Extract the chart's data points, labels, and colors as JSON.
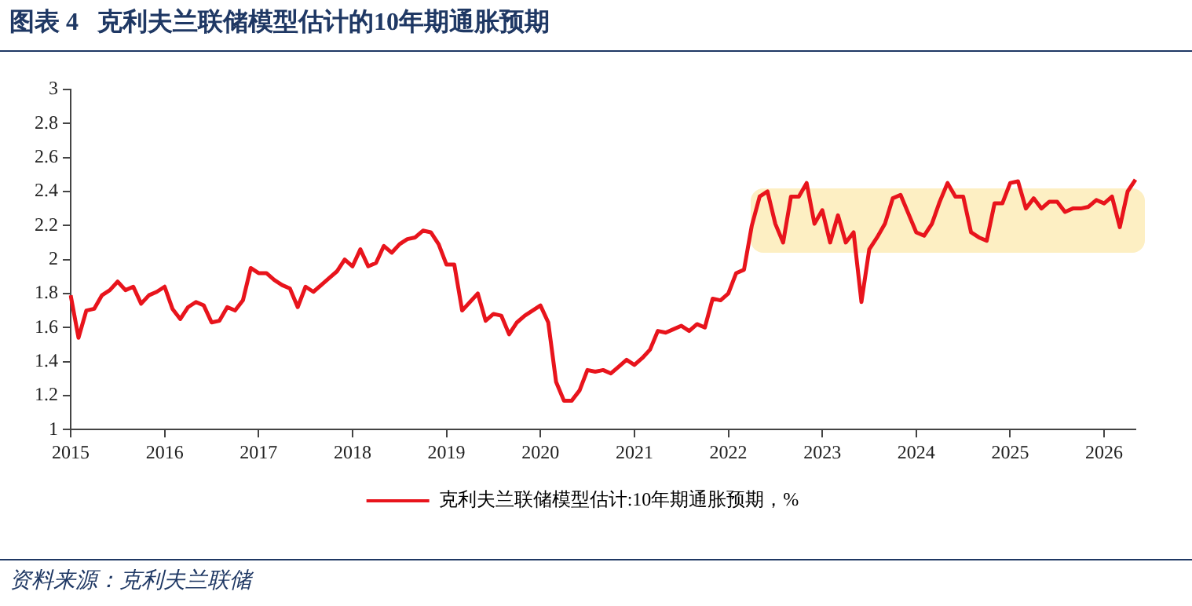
{
  "chart_data": {
    "type": "line",
    "title": "图表 4   克利夫兰联储模型估计的10年期通胀预期",
    "annotations": [
      "资料来源：克利夫兰联储"
    ],
    "categories": [
      "2015",
      null,
      null,
      null,
      null,
      null,
      null,
      null,
      null,
      null,
      null,
      null,
      "2016",
      null,
      null,
      null,
      null,
      null,
      null,
      null,
      null,
      null,
      null,
      null,
      "2017",
      null,
      null,
      null,
      null,
      null,
      null,
      null,
      null,
      null,
      null,
      null,
      "2018",
      null,
      null,
      null,
      null,
      null,
      null,
      null,
      null,
      null,
      null,
      null,
      "2019",
      null,
      null,
      null,
      null,
      null,
      null,
      null,
      null,
      null,
      null,
      null,
      "2020",
      null,
      null,
      null,
      null,
      null,
      null,
      null,
      null,
      null,
      null,
      null,
      "2021",
      null,
      null,
      null,
      null,
      null,
      null,
      null,
      null,
      null,
      null,
      null,
      "2022",
      null,
      null,
      null,
      null,
      null,
      null,
      null,
      null,
      null,
      null,
      null,
      "2023",
      null,
      null,
      null,
      null,
      null,
      null,
      null,
      null,
      null,
      null,
      null,
      "2024",
      null,
      null,
      null,
      null,
      null,
      null,
      null,
      null,
      null,
      null,
      null,
      "2025",
      null,
      null,
      null,
      null,
      null,
      null,
      null,
      null,
      null,
      null,
      null,
      "2026",
      null,
      null,
      null,
      null
    ],
    "series": [
      {
        "name": "克利夫兰联储模型估计:10年期通胀预期，%",
        "color": "#e8141c",
        "values": [
          1.79,
          1.54,
          1.7,
          1.71,
          1.79,
          1.82,
          1.87,
          1.82,
          1.84,
          1.74,
          1.79,
          1.81,
          1.84,
          1.71,
          1.65,
          1.72,
          1.75,
          1.73,
          1.63,
          1.64,
          1.72,
          1.7,
          1.76,
          1.95,
          1.92,
          1.92,
          1.88,
          1.85,
          1.83,
          1.72,
          1.84,
          1.81,
          1.85,
          1.89,
          1.93,
          2.0,
          1.96,
          2.06,
          1.96,
          1.98,
          2.08,
          2.04,
          2.09,
          2.12,
          2.13,
          2.17,
          2.16,
          2.09,
          1.97,
          1.97,
          1.7,
          1.75,
          1.8,
          1.64,
          1.68,
          1.67,
          1.56,
          1.63,
          1.67,
          1.7,
          1.73,
          1.63,
          1.28,
          1.17,
          1.17,
          1.23,
          1.35,
          1.34,
          1.35,
          1.33,
          1.37,
          1.41,
          1.38,
          1.42,
          1.47,
          1.58,
          1.57,
          1.59,
          1.61,
          1.58,
          1.62,
          1.6,
          1.77,
          1.76,
          1.8,
          1.92,
          1.94,
          2.2,
          2.37,
          2.4,
          2.21,
          2.1,
          2.37,
          2.37,
          2.45,
          2.21,
          2.29,
          2.1,
          2.26,
          2.1,
          2.16,
          1.75,
          2.06,
          2.13,
          2.21,
          2.36,
          2.38,
          2.27,
          2.16,
          2.14,
          2.21,
          2.34,
          2.45,
          2.37,
          2.37,
          2.16,
          2.13,
          2.11,
          2.33,
          2.33,
          2.45,
          2.46,
          2.3,
          2.36,
          2.3,
          2.34,
          2.34,
          2.28,
          2.3,
          2.3,
          2.31,
          2.35,
          2.33,
          2.37,
          2.19,
          2.4,
          2.47
        ]
      }
    ],
    "ylim": [
      1,
      3
    ],
    "yticks": [
      1,
      1.2,
      1.4,
      1.6,
      1.8,
      2,
      2.2,
      2.4,
      2.6,
      2.8,
      3
    ],
    "grid": false,
    "legend": "bottom",
    "marker": "none",
    "line_style": "solid"
  }
}
